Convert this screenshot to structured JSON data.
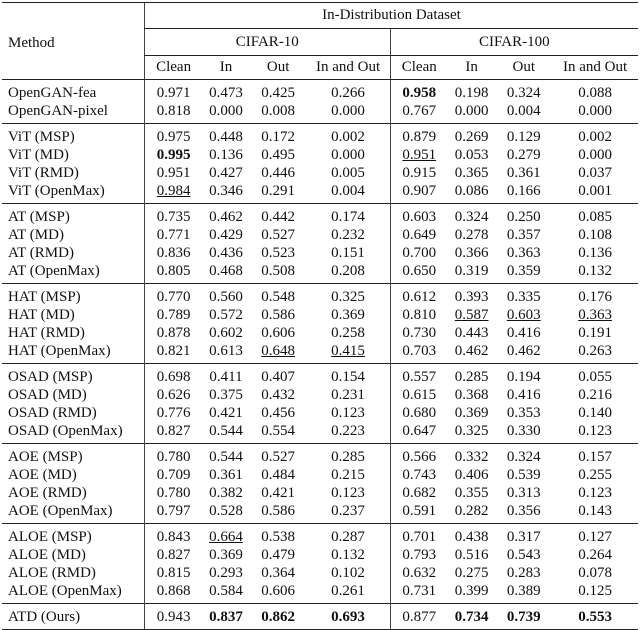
{
  "table": {
    "header": {
      "group": "In-Distribution Dataset",
      "method": "Method",
      "datasets": [
        "CIFAR-10",
        "CIFAR-100"
      ],
      "columns": [
        "Clean",
        "In",
        "Out",
        "In and Out",
        "Clean",
        "In",
        "Out",
        "In and Out"
      ]
    },
    "groups": [
      [
        {
          "method": "OpenGAN-fea",
          "values": [
            "0.971",
            "0.473",
            "0.425",
            "0.266",
            "0.958",
            "0.198",
            "0.324",
            "0.088"
          ],
          "bold": [
            4
          ]
        },
        {
          "method": "OpenGAN-pixel",
          "values": [
            "0.818",
            "0.000",
            "0.008",
            "0.000",
            "0.767",
            "0.000",
            "0.004",
            "0.000"
          ]
        }
      ],
      [
        {
          "method": "ViT (MSP)",
          "values": [
            "0.975",
            "0.448",
            "0.172",
            "0.002",
            "0.879",
            "0.269",
            "0.129",
            "0.002"
          ]
        },
        {
          "method": "ViT (MD)",
          "values": [
            "0.995",
            "0.136",
            "0.495",
            "0.000",
            "0.951",
            "0.053",
            "0.279",
            "0.000"
          ],
          "bold": [
            0
          ],
          "underline": [
            4
          ]
        },
        {
          "method": "ViT (RMD)",
          "values": [
            "0.951",
            "0.427",
            "0.446",
            "0.005",
            "0.915",
            "0.365",
            "0.361",
            "0.037"
          ]
        },
        {
          "method": "ViT (OpenMax)",
          "values": [
            "0.984",
            "0.346",
            "0.291",
            "0.004",
            "0.907",
            "0.086",
            "0.166",
            "0.001"
          ],
          "underline": [
            0
          ]
        }
      ],
      [
        {
          "method": "AT (MSP)",
          "values": [
            "0.735",
            "0.462",
            "0.442",
            "0.174",
            "0.603",
            "0.324",
            "0.250",
            "0.085"
          ]
        },
        {
          "method": "AT (MD)",
          "values": [
            "0.771",
            "0.429",
            "0.527",
            "0.232",
            "0.649",
            "0.278",
            "0.357",
            "0.108"
          ]
        },
        {
          "method": "AT (RMD)",
          "values": [
            "0.836",
            "0.436",
            "0.523",
            "0.151",
            "0.700",
            "0.366",
            "0.363",
            "0.136"
          ]
        },
        {
          "method": "AT (OpenMax)",
          "values": [
            "0.805",
            "0.468",
            "0.508",
            "0.208",
            "0.650",
            "0.319",
            "0.359",
            "0.132"
          ]
        }
      ],
      [
        {
          "method": "HAT (MSP)",
          "values": [
            "0.770",
            "0.560",
            "0.548",
            "0.325",
            "0.612",
            "0.393",
            "0.335",
            "0.176"
          ]
        },
        {
          "method": "HAT (MD)",
          "values": [
            "0.789",
            "0.572",
            "0.586",
            "0.369",
            "0.810",
            "0.587",
            "0.603",
            "0.363"
          ],
          "underline": [
            5,
            6,
            7
          ]
        },
        {
          "method": "HAT (RMD)",
          "values": [
            "0.878",
            "0.602",
            "0.606",
            "0.258",
            "0.730",
            "0.443",
            "0.416",
            "0.191"
          ]
        },
        {
          "method": "HAT (OpenMax)",
          "values": [
            "0.821",
            "0.613",
            "0.648",
            "0.415",
            "0.703",
            "0.462",
            "0.462",
            "0.263"
          ],
          "underline": [
            2,
            3
          ]
        }
      ],
      [
        {
          "method": "OSAD (MSP)",
          "values": [
            "0.698",
            "0.411",
            "0.407",
            "0.154",
            "0.557",
            "0.285",
            "0.194",
            "0.055"
          ]
        },
        {
          "method": "OSAD (MD)",
          "values": [
            "0.626",
            "0.375",
            "0.432",
            "0.231",
            "0.615",
            "0.368",
            "0.416",
            "0.216"
          ]
        },
        {
          "method": "OSAD (RMD)",
          "values": [
            "0.776",
            "0.421",
            "0.456",
            "0.123",
            "0.680",
            "0.369",
            "0.353",
            "0.140"
          ]
        },
        {
          "method": "OSAD (OpenMax)",
          "values": [
            "0.827",
            "0.544",
            "0.554",
            "0.223",
            "0.647",
            "0.325",
            "0.330",
            "0.123"
          ]
        }
      ],
      [
        {
          "method": "AOE (MSP)",
          "values": [
            "0.780",
            "0.544",
            "0.527",
            "0.285",
            "0.566",
            "0.332",
            "0.324",
            "0.157"
          ]
        },
        {
          "method": "AOE (MD)",
          "values": [
            "0.709",
            "0.361",
            "0.484",
            "0.215",
            "0.743",
            "0.406",
            "0.539",
            "0.255"
          ]
        },
        {
          "method": "AOE (RMD)",
          "values": [
            "0.780",
            "0.382",
            "0.421",
            "0.123",
            "0.682",
            "0.355",
            "0.313",
            "0.123"
          ]
        },
        {
          "method": "AOE (OpenMax)",
          "values": [
            "0.797",
            "0.528",
            "0.586",
            "0.237",
            "0.591",
            "0.282",
            "0.356",
            "0.143"
          ]
        }
      ],
      [
        {
          "method": "ALOE (MSP)",
          "values": [
            "0.843",
            "0.664",
            "0.538",
            "0.287",
            "0.701",
            "0.438",
            "0.317",
            "0.127"
          ],
          "underline": [
            1
          ]
        },
        {
          "method": "ALOE (MD)",
          "values": [
            "0.827",
            "0.369",
            "0.479",
            "0.132",
            "0.793",
            "0.516",
            "0.543",
            "0.264"
          ]
        },
        {
          "method": "ALOE (RMD)",
          "values": [
            "0.815",
            "0.293",
            "0.364",
            "0.102",
            "0.632",
            "0.275",
            "0.283",
            "0.078"
          ]
        },
        {
          "method": "ALOE (OpenMax)",
          "values": [
            "0.868",
            "0.584",
            "0.606",
            "0.261",
            "0.731",
            "0.399",
            "0.389",
            "0.125"
          ]
        }
      ],
      [
        {
          "method": "ATD (Ours)",
          "values": [
            "0.943",
            "0.837",
            "0.862",
            "0.693",
            "0.877",
            "0.734",
            "0.739",
            "0.553"
          ],
          "bold": [
            1,
            2,
            3,
            5,
            6,
            7
          ]
        }
      ]
    ]
  }
}
